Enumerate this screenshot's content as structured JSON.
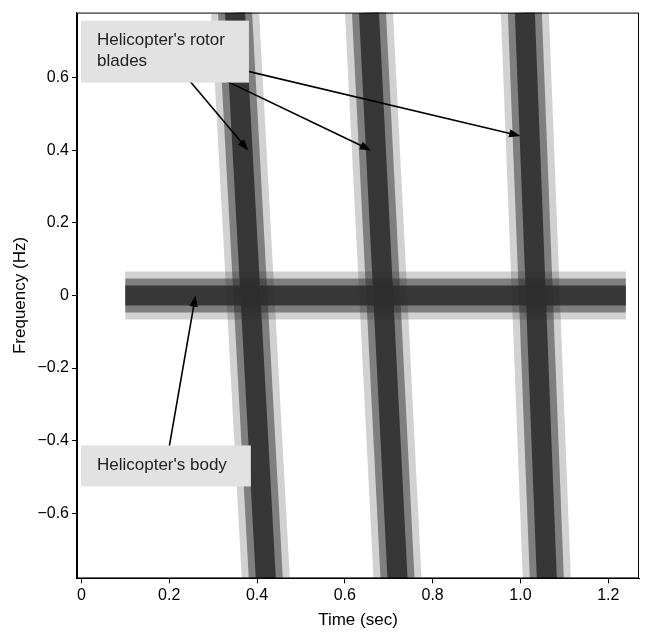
{
  "chart_data": {
    "type": "spectrogram",
    "xlabel": "Time (sec)",
    "ylabel": "Frequency (Hz)",
    "xlim": [
      -0.01,
      1.27
    ],
    "ylim": [
      -0.78,
      0.78
    ],
    "xticks": [
      0,
      0.2,
      0.4,
      0.6,
      0.8,
      {
        "value": 1,
        "label": "1.0"
      },
      1.2
    ],
    "yticks": [
      {
        "value": -0.6,
        "label": "−0.6"
      },
      {
        "value": -0.4,
        "label": "−0.4"
      },
      {
        "value": -0.2,
        "label": "−0.2"
      },
      0,
      0.2,
      0.4,
      0.6
    ],
    "grid": false,
    "color": "#2e2e2e",
    "series": [
      {
        "x": [
          0.1,
          1.24
        ],
        "values": [
          0,
          0
        ]
      },
      {
        "x": [
          0.35,
          0.42
        ],
        "values": [
          0.78,
          -0.78
        ]
      },
      {
        "x": [
          0.655,
          0.72
        ],
        "values": [
          0.78,
          -0.78
        ]
      },
      {
        "x": [
          1.01,
          1.06
        ],
        "values": [
          0.78,
          -0.78
        ]
      }
    ],
    "annotations": [
      {
        "text": "Helicopter's rotor blades",
        "x": [
          0.38,
          0.66,
          1.0
        ],
        "y": [
          0.4,
          0.4,
          0.44
        ]
      },
      {
        "text": "Helicopter's body",
        "x": [
          0.26
        ],
        "y": [
          0
        ]
      }
    ]
  }
}
